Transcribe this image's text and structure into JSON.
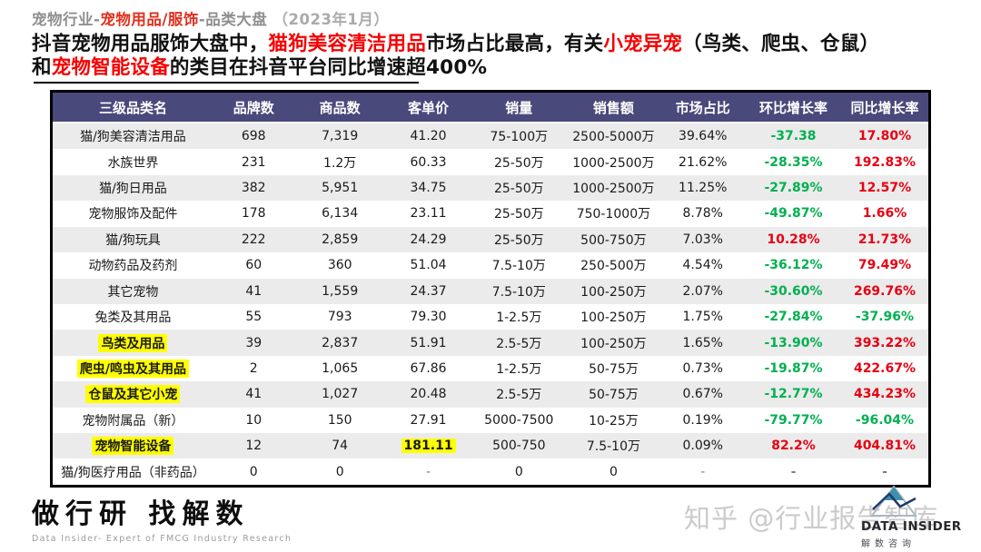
{
  "breadcrumb": {
    "prefix": "宠物行业-",
    "highlight": "宠物用品/服饰",
    "suffix": "-品类大盘",
    "date": "（2023年1月）"
  },
  "headline": {
    "lines": [
      [
        {
          "text": "抖音宠物用品服饰大盘中，",
          "red": false
        },
        {
          "text": "猫狗美容清洁用品",
          "red": true
        },
        {
          "text": "市场占比最高，有关",
          "red": false
        },
        {
          "text": "小宠异宠",
          "red": true
        },
        {
          "text": "（鸟类、爬虫、仓鼠）",
          "red": false
        }
      ],
      [
        {
          "text": "和",
          "red": false
        },
        {
          "text": "宠物智能设备",
          "red": true
        },
        {
          "text": "的类目在抖音平台同比增速超400%",
          "red": false
        }
      ]
    ]
  },
  "table": {
    "columns": [
      "三级品类名",
      "品牌数",
      "商品数",
      "客单价",
      "销量",
      "销售额",
      "市场占比",
      "环比增长率",
      "同比增长率"
    ],
    "rows": [
      {
        "name": "猫/狗美容清洁用品",
        "name_highlight": false,
        "brands": "698",
        "products": "7,319",
        "price": "41.20",
        "price_highlight": false,
        "volume": "75-100万",
        "amount": "2500-5000万",
        "share": "39.64%",
        "mom": "-37.38",
        "mom_color": "green",
        "yoy": "17.80%",
        "yoy_color": "red"
      },
      {
        "name": "水族世界",
        "name_highlight": false,
        "brands": "231",
        "products": "1.2万",
        "price": "60.33",
        "price_highlight": false,
        "volume": "25-50万",
        "amount": "1000-2500万",
        "share": "21.62%",
        "mom": "-28.35%",
        "mom_color": "green",
        "yoy": "192.83%",
        "yoy_color": "red"
      },
      {
        "name": "猫/狗日用品",
        "name_highlight": false,
        "brands": "382",
        "products": "5,951",
        "price": "34.75",
        "price_highlight": false,
        "volume": "25-50万",
        "amount": "1000-2500万",
        "share": "11.25%",
        "mom": "-27.89%",
        "mom_color": "green",
        "yoy": "12.57%",
        "yoy_color": "red"
      },
      {
        "name": "宠物服饰及配件",
        "name_highlight": false,
        "brands": "178",
        "products": "6,134",
        "price": "23.11",
        "price_highlight": false,
        "volume": "25-50万",
        "amount": "750-1000万",
        "share": "8.78%",
        "mom": "-49.87%",
        "mom_color": "green",
        "yoy": "1.66%",
        "yoy_color": "red"
      },
      {
        "name": "猫/狗玩具",
        "name_highlight": false,
        "brands": "222",
        "products": "2,859",
        "price": "24.29",
        "price_highlight": false,
        "volume": "25-50万",
        "amount": "500-750万",
        "share": "7.03%",
        "mom": "10.28%",
        "mom_color": "red",
        "yoy": "21.73%",
        "yoy_color": "red"
      },
      {
        "name": "动物药品及药剂",
        "name_highlight": false,
        "brands": "60",
        "products": "360",
        "price": "51.04",
        "price_highlight": false,
        "volume": "7.5-10万",
        "amount": "250-500万",
        "share": "4.54%",
        "mom": "-36.12%",
        "mom_color": "green",
        "yoy": "79.49%",
        "yoy_color": "red"
      },
      {
        "name": "其它宠物",
        "name_highlight": false,
        "brands": "41",
        "products": "1,559",
        "price": "24.37",
        "price_highlight": false,
        "volume": "7.5-10万",
        "amount": "100-250万",
        "share": "2.07%",
        "mom": "-30.60%",
        "mom_color": "green",
        "yoy": "269.76%",
        "yoy_color": "red"
      },
      {
        "name": "兔类及其用品",
        "name_highlight": false,
        "brands": "55",
        "products": "793",
        "price": "79.30",
        "price_highlight": false,
        "volume": "1-2.5万",
        "amount": "100-250万",
        "share": "1.75%",
        "mom": "-27.84%",
        "mom_color": "green",
        "yoy": "-37.96%",
        "yoy_color": "green"
      },
      {
        "name": "鸟类及用品",
        "name_highlight": true,
        "brands": "39",
        "products": "2,837",
        "price": "51.91",
        "price_highlight": false,
        "volume": "2.5-5万",
        "amount": "100-250万",
        "share": "1.65%",
        "mom": "-13.90%",
        "mom_color": "green",
        "yoy": "393.22%",
        "yoy_color": "red"
      },
      {
        "name": "爬虫/鸣虫及其用品",
        "name_highlight": true,
        "brands": "2",
        "products": "1,065",
        "price": "67.86",
        "price_highlight": false,
        "volume": "1-2.5万",
        "amount": "50-75万",
        "share": "0.73%",
        "mom": "-19.87%",
        "mom_color": "green",
        "yoy": "422.67%",
        "yoy_color": "red"
      },
      {
        "name": "仓鼠及其它小宠",
        "name_highlight": true,
        "brands": "41",
        "products": "1,027",
        "price": "20.48",
        "price_highlight": false,
        "volume": "2.5-5万",
        "amount": "50-75万",
        "share": "0.67%",
        "mom": "-12.77%",
        "mom_color": "green",
        "yoy": "434.23%",
        "yoy_color": "red"
      },
      {
        "name": "宠物附属品（新）",
        "name_highlight": false,
        "brands": "10",
        "products": "150",
        "price": "27.91",
        "price_highlight": false,
        "volume": "5000-7500",
        "amount": "10-25万",
        "share": "0.19%",
        "mom": "-79.77%",
        "mom_color": "green",
        "yoy": "-96.04%",
        "yoy_color": "green"
      },
      {
        "name": "宠物智能设备",
        "name_highlight": true,
        "brands": "12",
        "products": "74",
        "price": "181.11",
        "price_highlight": true,
        "volume": "500-750",
        "amount": "7.5-10万",
        "share": "0.09%",
        "mom": "82.2%",
        "mom_color": "red",
        "yoy": "404.81%",
        "yoy_color": "red"
      },
      {
        "name": "猫/狗医疗用品（非药品）",
        "name_highlight": false,
        "brands": "0",
        "products": "0",
        "price": "-",
        "price_highlight": false,
        "volume": "0",
        "amount": "0",
        "share": "-",
        "mom": "-",
        "mom_color": "muted",
        "yoy": "-",
        "yoy_color": "muted"
      }
    ]
  },
  "footer": {
    "logo_text": "做行研 找解数",
    "logo_tagline": "Data Insider- Expert of FMCG Industry Research",
    "watermark": "知乎 @行业报告智库",
    "brand_name": "DATA INSIDER",
    "brand_sub": "解数咨询"
  },
  "colors": {
    "breadcrumb_red": "#e0301e",
    "headline_red": "#f40000",
    "table_header_bg": "#4a497b",
    "value_red": "#e60012",
    "value_green": "#00b050",
    "highlight_yellow": "#ffff00"
  }
}
